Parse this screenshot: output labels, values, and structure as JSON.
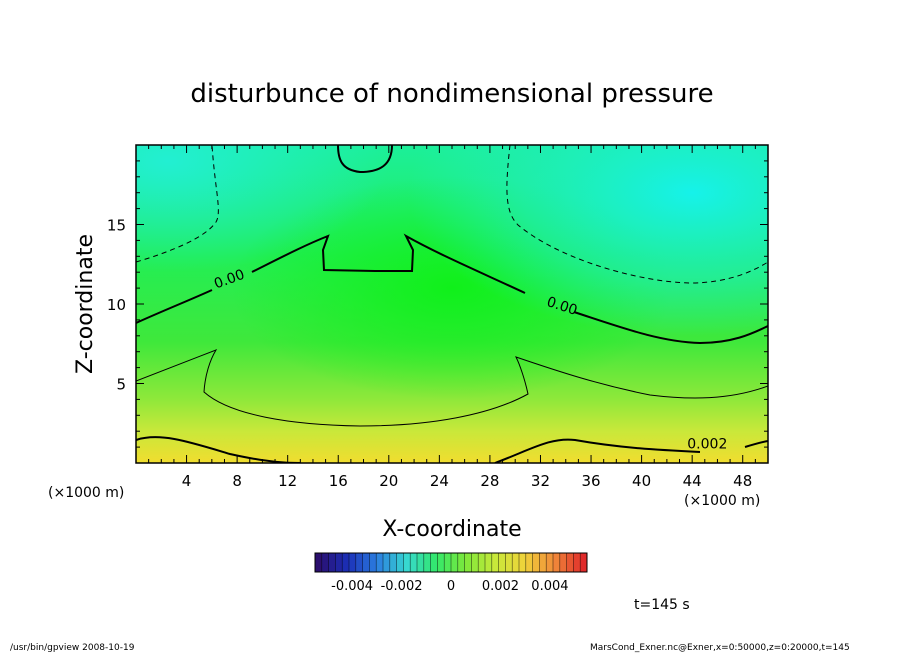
{
  "chart_data": {
    "type": "heatmap",
    "title": "disturbunce of nondimensional pressure",
    "xlabel": "X-coordinate",
    "ylabel": "Z-coordinate",
    "x_unit": "(×1000 m)",
    "y_unit": "(×1000 m)",
    "xlim": [
      0,
      50
    ],
    "ylim": [
      0,
      20
    ],
    "x_ticks": [
      4,
      8,
      12,
      16,
      20,
      24,
      28,
      32,
      36,
      40,
      44,
      48
    ],
    "y_ticks": [
      5,
      10,
      15
    ],
    "contour_labels": [
      {
        "text": "0.00",
        "x": 7.5,
        "z": 11.3
      },
      {
        "text": "0.00",
        "x": 33.6,
        "z": 9.6
      },
      {
        "text": "0.002",
        "x": 45.2,
        "z": 0.9
      }
    ],
    "colorbar": {
      "ticks": [
        "-0.004",
        "-0.002",
        "0",
        "0.002",
        "0.004"
      ],
      "range": [
        -0.0055,
        0.0055
      ],
      "colors": [
        "#2b0f6e",
        "#1b2fb8",
        "#2c7fe0",
        "#37d8d0",
        "#33e86a",
        "#7fe83a",
        "#c8e83a",
        "#f0d23a",
        "#f08a3a",
        "#e02a2a"
      ]
    },
    "annotation_time": "t=145 s",
    "footer_left": "/usr/bin/gpview   2008-10-19",
    "footer_right": "MarsCond_Exner.nc@Exner,x=0:50000,z=0:20000,t=145"
  }
}
